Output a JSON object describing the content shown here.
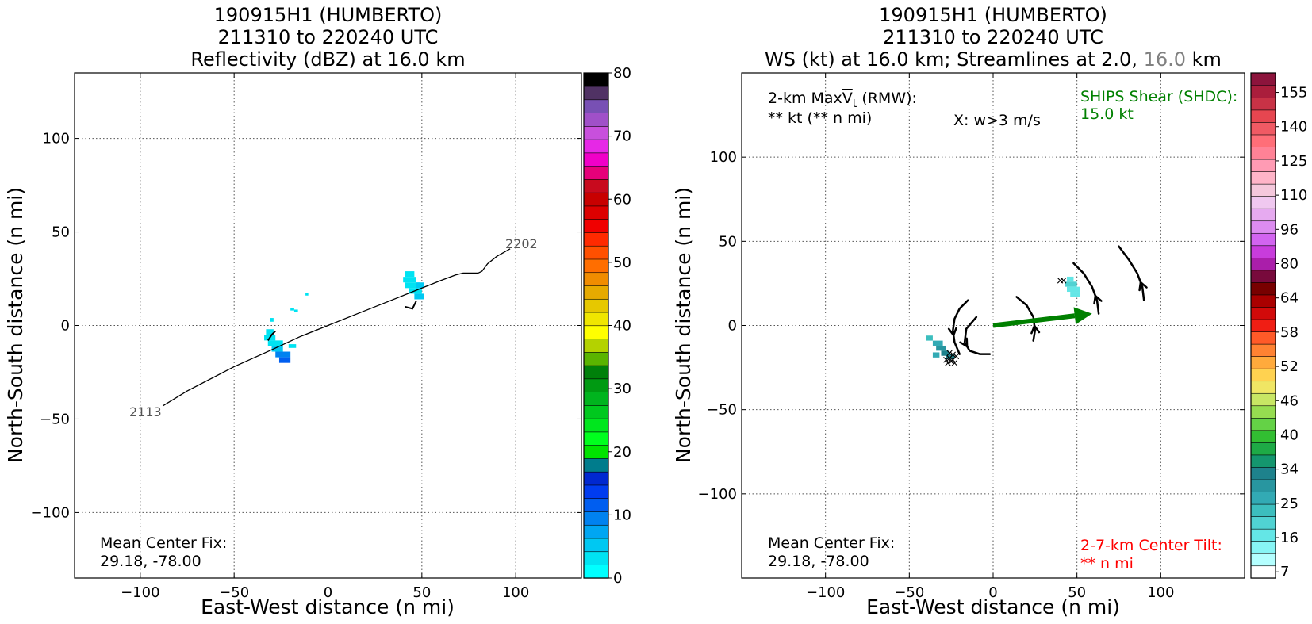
{
  "colors": {
    "track": "#000000",
    "ships_shear": "#008000",
    "center_tilt": "#ff0000",
    "tilt_level_gray": "#808080"
  },
  "chart_data": [
    {
      "type": "heatmap",
      "title_lines": [
        "190915H1 (HUMBERTO)",
        "211310 to 220240 UTC",
        "Reflectivity (dBZ) at 16.0 km"
      ],
      "xlabel": "East-West distance (n mi)",
      "ylabel": "North-South distance (n mi)",
      "xlim": [
        -135,
        135
      ],
      "ylim": [
        -135,
        135
      ],
      "xticks": [
        -100,
        -50,
        0,
        50,
        100
      ],
      "yticks": [
        -100,
        -50,
        0,
        50,
        100
      ],
      "grid": true,
      "colorbar": {
        "label_values": [
          0,
          10,
          20,
          30,
          40,
          50,
          60,
          70,
          80
        ],
        "colors": [
          "#00ffff",
          "#00e3f2",
          "#00c8f2",
          "#00a6f2",
          "#0082f0",
          "#005ef0",
          "#003cf0",
          "#0028d0",
          "#007c8c",
          "#00e400",
          "#00ff1e",
          "#00e61e",
          "#00c81e",
          "#00b41e",
          "#009a12",
          "#00800a",
          "#5ab400",
          "#b4d200",
          "#ffff00",
          "#f0e600",
          "#e6c800",
          "#e6aa00",
          "#f08c00",
          "#ff6e00",
          "#ff5000",
          "#ff2a00",
          "#f00000",
          "#dc0000",
          "#c80000",
          "#c80a1e",
          "#e6007a",
          "#f000c8",
          "#e628e6",
          "#c850dc",
          "#a050c8",
          "#7850b4",
          "#503264",
          "#000000"
        ]
      },
      "series": [
        {
          "type": "track",
          "start_label": "2113",
          "end_label": "2202",
          "points": [
            [
              -88,
              -43
            ],
            [
              -75,
              -35
            ],
            [
              -50,
              -22
            ],
            [
              -30,
              -13
            ],
            [
              -15,
              -6
            ],
            [
              0,
              0
            ],
            [
              15,
              6
            ],
            [
              30,
              12
            ],
            [
              45,
              18
            ],
            [
              60,
              24
            ],
            [
              68,
              27
            ],
            [
              72,
              28
            ],
            [
              75,
              28
            ],
            [
              80,
              28
            ],
            [
              82,
              29
            ],
            [
              85,
              33
            ],
            [
              90,
              37
            ],
            [
              97,
              41
            ]
          ]
        },
        {
          "type": "flight_segment",
          "points": [
            [
              -32,
              -8
            ],
            [
              -30,
              -5
            ],
            [
              -28,
              -3
            ]
          ]
        },
        {
          "type": "flight_segment",
          "points": [
            [
              41,
              10
            ],
            [
              45,
              9
            ],
            [
              47,
              13
            ]
          ]
        }
      ],
      "echoes": [
        {
          "x": -33,
          "y": -5,
          "w": 4,
          "h": 3,
          "dbz": 3
        },
        {
          "x": -34,
          "y": -8,
          "w": 6,
          "h": 3,
          "dbz": 3
        },
        {
          "x": -32,
          "y": -11,
          "w": 8,
          "h": 3,
          "dbz": 3
        },
        {
          "x": -30,
          "y": -14,
          "w": 6,
          "h": 3,
          "dbz": 5
        },
        {
          "x": -28,
          "y": -17,
          "w": 8,
          "h": 3,
          "dbz": 9
        },
        {
          "x": -26,
          "y": -20,
          "w": 6,
          "h": 3,
          "dbz": 11
        },
        {
          "x": -31,
          "y": 2,
          "w": 2,
          "h": 2,
          "dbz": 3
        },
        {
          "x": -21,
          "y": -12,
          "w": 4,
          "h": 2,
          "dbz": 3
        },
        {
          "x": -20,
          "y": 8,
          "w": 2,
          "h": 1.5,
          "dbz": 3
        },
        {
          "x": -18,
          "y": 7,
          "w": 2,
          "h": 1.5,
          "dbz": 3
        },
        {
          "x": -12,
          "y": 16,
          "w": 1.5,
          "h": 1.5,
          "dbz": 3
        },
        {
          "x": 41,
          "y": 26,
          "w": 5,
          "h": 3,
          "dbz": 3
        },
        {
          "x": 40,
          "y": 23,
          "w": 7,
          "h": 3,
          "dbz": 2
        },
        {
          "x": 41,
          "y": 20,
          "w": 8,
          "h": 3,
          "dbz": 3
        },
        {
          "x": 43,
          "y": 17,
          "w": 7,
          "h": 3,
          "dbz": 3
        },
        {
          "x": 46,
          "y": 14,
          "w": 5,
          "h": 3,
          "dbz": 5
        },
        {
          "x": 47,
          "y": 20,
          "w": 4,
          "h": 3,
          "dbz": 4
        }
      ],
      "annotations": {
        "center_fix_label": "Mean Center Fix:",
        "center_fix_value": "29.18, -78.00"
      }
    },
    {
      "type": "heatmap",
      "title_lines": [
        "190915H1 (HUMBERTO)",
        "211310 to 220240 UTC"
      ],
      "title_line3_prefix": "WS (kt) at 16.0 km; Streamlines at 2.0,",
      "title_line3_gray": "16.0",
      "title_line3_suffix": "km",
      "xlabel": "East-West distance (n mi)",
      "ylabel": "North-South distance (n mi)",
      "xlim": [
        -150,
        150
      ],
      "ylim": [
        -150,
        150
      ],
      "xticks": [
        -100,
        -50,
        0,
        50,
        100
      ],
      "yticks": [
        -100,
        -50,
        0,
        50,
        100
      ],
      "grid": true,
      "colorbar": {
        "label_values": [
          7,
          16,
          25,
          34,
          40,
          46,
          52,
          58,
          64,
          80,
          96,
          110,
          125,
          140,
          155
        ],
        "colors": [
          "#ffffff",
          "#b4ffff",
          "#87f5f5",
          "#64e6e6",
          "#50d2d2",
          "#3cbebe",
          "#32aab4",
          "#2896a0",
          "#1e828c",
          "#14966e",
          "#1eaa46",
          "#32be32",
          "#64d246",
          "#96dc50",
          "#c8e664",
          "#f0e664",
          "#ffd250",
          "#ffaa3c",
          "#ff8232",
          "#ff5a28",
          "#f01e14",
          "#d20a0a",
          "#aa0000",
          "#780000",
          "#780a3c",
          "#aa1eaa",
          "#c83cdc",
          "#d264f0",
          "#dc8cf0",
          "#e6aaf0",
          "#f0c8f0",
          "#f5c8dc",
          "#ffb4c8",
          "#ff9bb4",
          "#ff8296",
          "#ff6e78",
          "#f05a64",
          "#e64650",
          "#c83246",
          "#aa1e3c",
          "#8c143c"
        ]
      },
      "ws_cells": [
        {
          "x": -40,
          "y": -9,
          "w": 4,
          "h": 3,
          "kt": 22
        },
        {
          "x": -36,
          "y": -12,
          "w": 6,
          "h": 3,
          "kt": 25
        },
        {
          "x": -34,
          "y": -15,
          "w": 6,
          "h": 3,
          "kt": 28
        },
        {
          "x": -31,
          "y": -18,
          "w": 5,
          "h": 3,
          "kt": 30
        },
        {
          "x": -28,
          "y": -20,
          "w": 5,
          "h": 3,
          "kt": 31
        },
        {
          "x": -36,
          "y": -19,
          "w": 4,
          "h": 3,
          "kt": 26
        },
        {
          "x": 44,
          "y": 26,
          "w": 4,
          "h": 3,
          "kt": 16
        },
        {
          "x": 43,
          "y": 23,
          "w": 7,
          "h": 3,
          "kt": 19
        },
        {
          "x": 44,
          "y": 20,
          "w": 8,
          "h": 3,
          "kt": 17
        },
        {
          "x": 46,
          "y": 17,
          "w": 6,
          "h": 3,
          "kt": 15
        }
      ],
      "streamlines": [
        {
          "points": [
            [
              -15,
              15
            ],
            [
              -20,
              10
            ],
            [
              -23,
              4
            ],
            [
              -24,
              -3
            ],
            [
              -23,
              -10
            ],
            [
              -20,
              -17
            ]
          ],
          "arrow_at": 3,
          "arrow_dir": "down"
        },
        {
          "points": [
            [
              -10,
              5
            ],
            [
              -16,
              -2
            ],
            [
              -17,
              -10
            ],
            [
              -14,
              -15
            ],
            [
              -8,
              -17
            ],
            [
              -2,
              -17
            ]
          ],
          "arrow_at": 2,
          "arrow_dir": "down"
        },
        {
          "points": [
            [
              14,
              17
            ],
            [
              20,
              12
            ],
            [
              24,
              5
            ],
            [
              25,
              -3
            ],
            [
              24,
              -9
            ]
          ],
          "arrow_at": 3,
          "arrow_dir": "up"
        },
        {
          "points": [
            [
              48,
              37
            ],
            [
              54,
              31
            ],
            [
              59,
              23
            ],
            [
              62,
              15
            ],
            [
              63,
              7
            ]
          ],
          "arrow_at": 3,
          "arrow_dir": "up"
        },
        {
          "points": [
            [
              75,
              47
            ],
            [
              81,
              39
            ],
            [
              86,
              31
            ],
            [
              89,
              23
            ],
            [
              90,
              15
            ]
          ],
          "arrow_at": 3,
          "arrow_dir": "up"
        }
      ],
      "w_markers": [
        [
          -26,
          -16
        ],
        [
          -24,
          -17
        ],
        [
          -26,
          -19
        ],
        [
          -24,
          -20
        ],
        [
          -28,
          -20
        ],
        [
          -22,
          -18
        ],
        [
          -25,
          -21
        ],
        [
          -27,
          -22
        ],
        [
          -23,
          -22
        ],
        [
          40,
          27
        ],
        [
          42,
          27
        ]
      ],
      "shear_vector": {
        "from": [
          0,
          0
        ],
        "to": [
          59,
          7
        ]
      },
      "annotations": {
        "maxvt_line1_prefix": "2-km Max",
        "maxvt_symbol": "V",
        "maxvt_sub": "t",
        "maxvt_line1_suffix": " (RMW):",
        "maxvt_line2": "** kt (** n mi)",
        "w_marker_label": "X: w>3 m/s",
        "ships_label": "SHIPS Shear (SHDC):",
        "ships_value": "15.0 kt",
        "center_fix_label": "Mean Center Fix:",
        "center_fix_value": "29.18, -78.00",
        "tilt_label": "2-7-km Center Tilt:",
        "tilt_value": "** n mi"
      }
    }
  ]
}
